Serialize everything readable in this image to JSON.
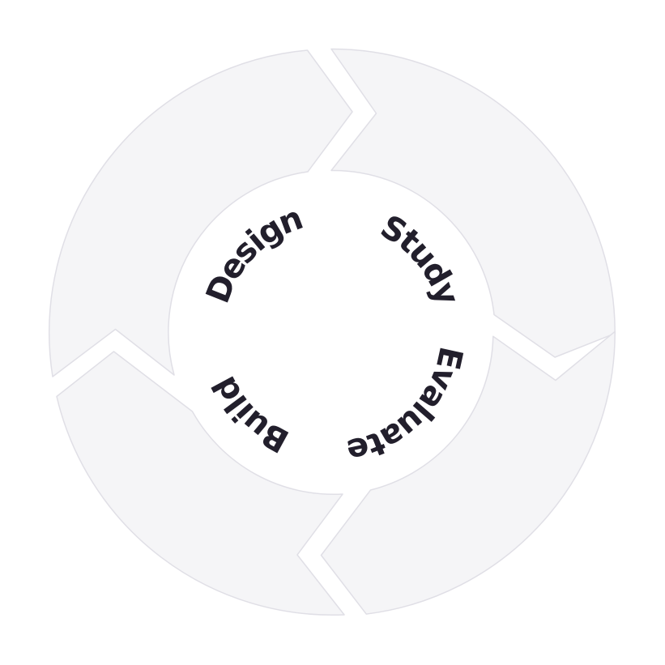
{
  "colors": {
    "segment_fill": "#f5f5f7",
    "segment_stroke": "#e0dfe6",
    "label_text": "#221f2c",
    "background": "#ffffff"
  },
  "diagram": {
    "type": "cycle",
    "stages": [
      {
        "label": "Study"
      },
      {
        "label": "Design"
      },
      {
        "label": "Build"
      },
      {
        "label": "Evaluate"
      }
    ]
  }
}
